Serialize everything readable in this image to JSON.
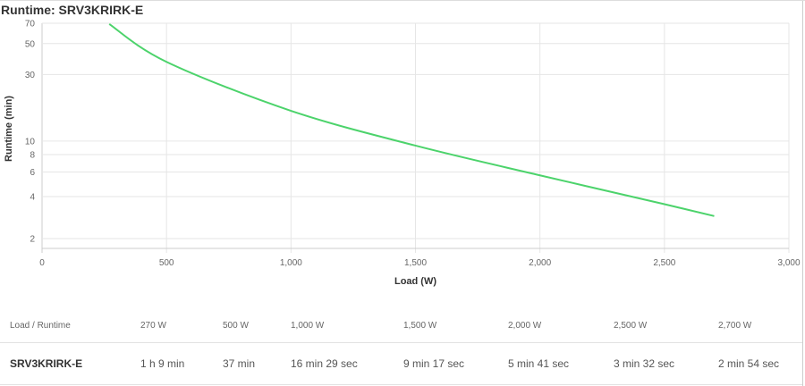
{
  "chart_data": {
    "type": "line",
    "title": "Runtime: SRV3KRIRK-E",
    "xlabel": "Load (W)",
    "ylabel": "Runtime (min)",
    "xlim": [
      0,
      3000
    ],
    "ylim": [
      1.7,
      70
    ],
    "yscale": "log",
    "grid": true,
    "x_ticks": [
      "0",
      "500",
      "1,000",
      "1,500",
      "2,000",
      "2,500",
      "3,000"
    ],
    "x_tick_values": [
      0,
      500,
      1000,
      1500,
      2000,
      2500,
      3000
    ],
    "y_ticks": [
      "2",
      "4",
      "6",
      "8",
      "10",
      "30",
      "50",
      "70"
    ],
    "y_tick_values": [
      2,
      4,
      6,
      8,
      10,
      30,
      50,
      70
    ],
    "series": [
      {
        "color": "#4cd36b",
        "x": [
          270,
          500,
          1000,
          1500,
          2000,
          2500,
          2700
        ],
        "y": [
          69,
          37,
          16.48,
          9.28,
          5.68,
          3.53,
          2.9
        ]
      }
    ]
  },
  "table": {
    "header": [
      "Load / Runtime",
      "270 W",
      "500 W",
      "1,000 W",
      "1,500 W",
      "2,000 W",
      "2,500 W",
      "2,700 W"
    ],
    "rows": [
      [
        "SRV3KRIRK-E",
        "1 h 9 min",
        "37 min",
        "16 min 29 sec",
        "9 min 17 sec",
        "5 min 41 sec",
        "3 min 32 sec",
        "2 min 54 sec"
      ]
    ]
  }
}
